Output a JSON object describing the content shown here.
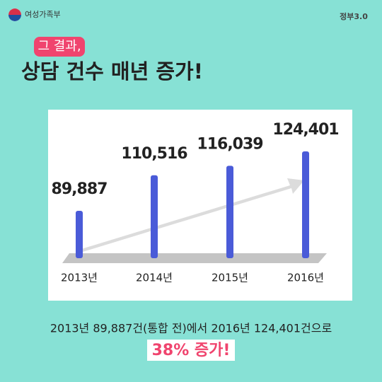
{
  "header": {
    "ministry": "여성가족부",
    "gov_logo": "정부3.0"
  },
  "tag": "그 결과,",
  "title": "상담 건수 매년 증가!",
  "chart_data": {
    "type": "bar",
    "categories": [
      "2013년",
      "2014년",
      "2015년",
      "2016년"
    ],
    "values": [
      89887,
      110516,
      116039,
      124401
    ],
    "value_labels": [
      "89,887",
      "110,516",
      "116,039",
      "124,401"
    ],
    "color": "#4a5bd8"
  },
  "summary": {
    "text": "2013년 89,887건(통합 전)에서 2016년 124,401건으로",
    "highlight": "38% 증가!"
  }
}
